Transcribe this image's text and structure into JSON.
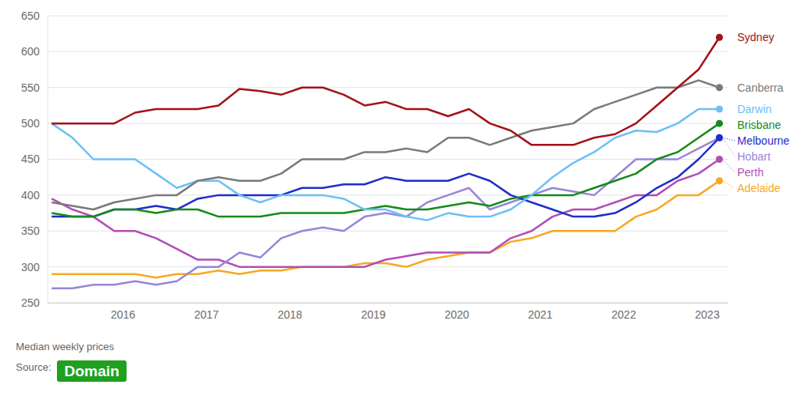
{
  "chart_data": {
    "type": "line",
    "caption": "Median weekly prices",
    "source_label": "Source:",
    "source": "Domain",
    "x": [
      2015.15,
      2015.4,
      2015.65,
      2015.9,
      2016.15,
      2016.4,
      2016.65,
      2016.9,
      2017.15,
      2017.4,
      2017.65,
      2017.9,
      2018.15,
      2018.4,
      2018.65,
      2018.9,
      2019.15,
      2019.4,
      2019.65,
      2019.9,
      2020.15,
      2020.4,
      2020.65,
      2020.9,
      2021.15,
      2021.4,
      2021.65,
      2021.9,
      2022.15,
      2022.4,
      2022.65,
      2022.9,
      2023.15
    ],
    "xlim": [
      2015.1,
      2023.25
    ],
    "xticks": [
      2016,
      2017,
      2018,
      2019,
      2020,
      2021,
      2022,
      2023
    ],
    "ylim": [
      250,
      650
    ],
    "yticks": [
      250,
      300,
      350,
      400,
      450,
      500,
      550,
      600,
      650
    ],
    "grid": true,
    "series": [
      {
        "name": "Sydney",
        "color": "#a3121a",
        "values": [
          500,
          500,
          500,
          500,
          515,
          520,
          520,
          520,
          525,
          548,
          545,
          540,
          550,
          550,
          540,
          525,
          530,
          520,
          520,
          510,
          520,
          500,
          490,
          470,
          470,
          470,
          480,
          485,
          500,
          525,
          550,
          575,
          620
        ]
      },
      {
        "name": "Canberra",
        "color": "#7a7a7a",
        "values": [
          390,
          385,
          380,
          390,
          395,
          400,
          400,
          420,
          425,
          420,
          420,
          430,
          450,
          450,
          450,
          460,
          460,
          465,
          460,
          480,
          480,
          470,
          480,
          490,
          495,
          500,
          520,
          530,
          540,
          550,
          550,
          560,
          550
        ]
      },
      {
        "name": "Darwin",
        "color": "#6cc0f6",
        "values": [
          500,
          480,
          450,
          450,
          450,
          430,
          410,
          420,
          420,
          400,
          390,
          400,
          400,
          400,
          395,
          380,
          380,
          370,
          365,
          375,
          370,
          370,
          380,
          400,
          425,
          445,
          460,
          480,
          490,
          488,
          500,
          520,
          520
        ]
      },
      {
        "name": "Brisbane",
        "color": "#178a1c",
        "values": [
          375,
          370,
          370,
          380,
          380,
          375,
          380,
          380,
          370,
          370,
          370,
          375,
          375,
          375,
          375,
          380,
          385,
          380,
          380,
          385,
          390,
          385,
          395,
          400,
          400,
          400,
          410,
          420,
          430,
          450,
          460,
          480,
          500
        ]
      },
      {
        "name": "Melbourne",
        "color": "#1f2ec8",
        "values": [
          370,
          370,
          370,
          380,
          380,
          385,
          380,
          395,
          400,
          400,
          400,
          400,
          410,
          410,
          415,
          415,
          425,
          420,
          420,
          420,
          430,
          420,
          400,
          390,
          380,
          370,
          370,
          375,
          390,
          410,
          425,
          450,
          480
        ]
      },
      {
        "name": "Hobart",
        "color": "#9886d8",
        "values": [
          270,
          270,
          275,
          275,
          280,
          275,
          280,
          300,
          300,
          320,
          313,
          340,
          350,
          355,
          350,
          370,
          375,
          370,
          390,
          400,
          410,
          380,
          390,
          400,
          410,
          405,
          400,
          425,
          450,
          450,
          450,
          465,
          480
        ]
      },
      {
        "name": "Perth",
        "color": "#b34db7",
        "values": [
          395,
          380,
          370,
          350,
          350,
          340,
          325,
          310,
          310,
          300,
          300,
          300,
          300,
          300,
          300,
          300,
          310,
          315,
          320,
          320,
          320,
          320,
          340,
          350,
          370,
          380,
          380,
          390,
          400,
          400,
          420,
          430,
          450
        ]
      },
      {
        "name": "Adelaide",
        "color": "#f7a823",
        "values": [
          290,
          290,
          290,
          290,
          290,
          285,
          290,
          290,
          295,
          290,
          295,
          295,
          300,
          300,
          300,
          305,
          305,
          300,
          310,
          315,
          320,
          320,
          335,
          340,
          350,
          350,
          350,
          350,
          370,
          380,
          400,
          400,
          420
        ]
      }
    ]
  }
}
